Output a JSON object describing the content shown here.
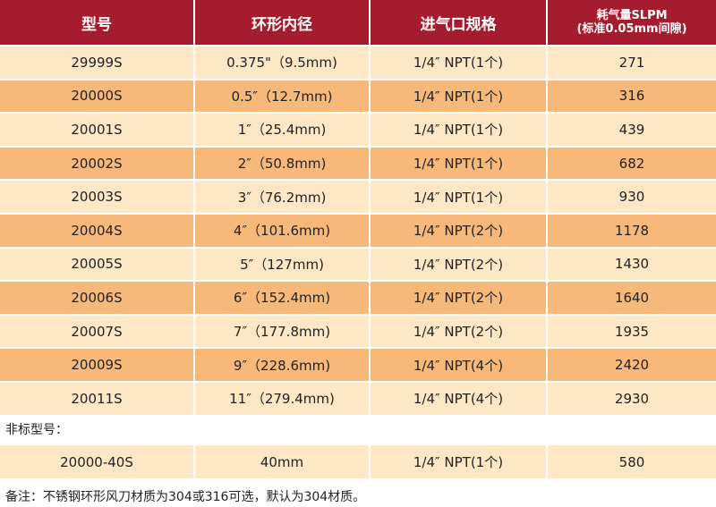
{
  "table": {
    "header": [
      [
        "型号"
      ],
      [
        "环形内径"
      ],
      [
        "进气口规格"
      ],
      [
        "耗气量SLPM",
        "(标准0.05mm间隙)"
      ]
    ],
    "rows": [
      [
        "29999S",
        "0.375\"（9.5mm)",
        "1/4″ NPT(1个)",
        271
      ],
      [
        "20000S",
        "0.5″（12.7mm)",
        "1/4″ NPT(1个)",
        316
      ],
      [
        "20001S",
        "1″（25.4mm)",
        "1/4″ NPT(1个)",
        439
      ],
      [
        "20002S",
        "2″（50.8mm)",
        "1/4″ NPT(1个)",
        682
      ],
      [
        "20003S",
        "3″（76.2mm)",
        "1/4″ NPT(1个)",
        930
      ],
      [
        "20004S",
        "4″（101.6mm)",
        "1/4″ NPT(2个)",
        1178
      ],
      [
        "20005S",
        "5″（127mm)",
        "1/4″ NPT(2个)",
        1430
      ],
      [
        "20006S",
        "6″（152.4mm)",
        "1/4″ NPT(2个)",
        1640
      ],
      [
        "20007S",
        "7″（177.8mm)",
        "1/4″ NPT(2个)",
        1935
      ],
      [
        "20009S",
        "9″（228.6mm)",
        "1/4″ NPT(4个)",
        2420
      ],
      [
        "20011S",
        "11″（279.4mm)",
        "1/4″ NPT(4个)",
        2930
      ]
    ]
  },
  "nonstandard": {
    "label": "非标型号：",
    "row": [
      "20000-40S",
      "40mm",
      "1/4″ NPT(1个)",
      580
    ]
  },
  "note": "备注：不锈钢环形风刀材质为304或316可选，默认为304材质。"
}
